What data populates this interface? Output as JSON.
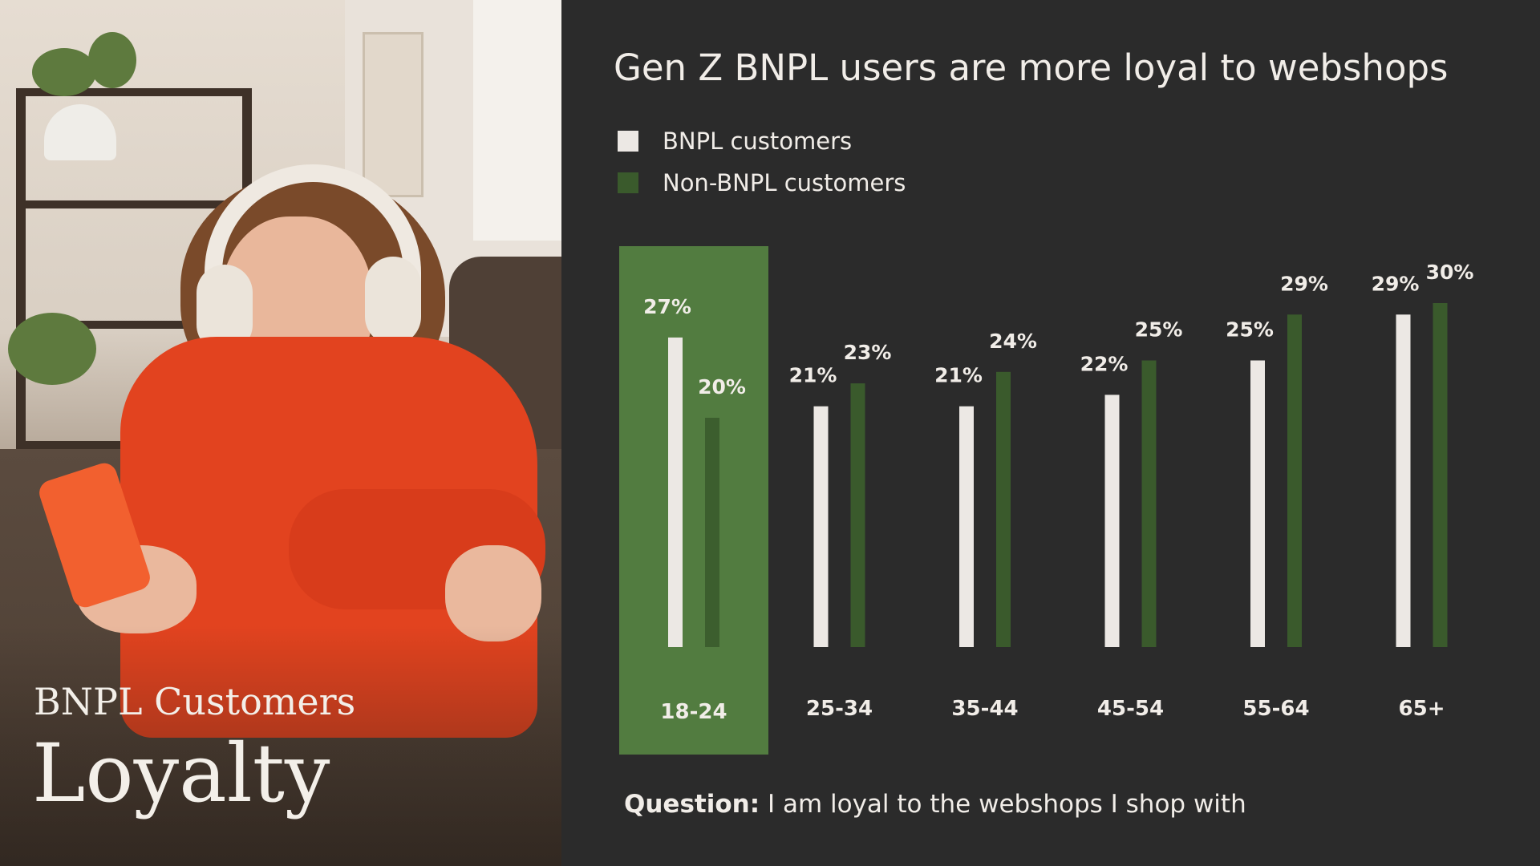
{
  "panel": {
    "subtitle": "BNPL Customers",
    "title": "Loyalty"
  },
  "colors": {
    "background": "#2b2b2b",
    "bnpl": "#ece8e4",
    "non_bnpl": "#3a5a2c",
    "highlight": "#527c40",
    "text": "#f1ede8"
  },
  "chart_data": {
    "type": "bar",
    "title": "Gen Z BNPL users are more loyal to webshops",
    "categories": [
      "18-24",
      "25-34",
      "35-44",
      "45-54",
      "55-64",
      "65+"
    ],
    "series": [
      {
        "name": "BNPL customers",
        "values": [
          27,
          21,
          21,
          22,
          25,
          29
        ],
        "labels": [
          "27%",
          "21%",
          "21%",
          "22%",
          "25%",
          "29%"
        ]
      },
      {
        "name": "Non-BNPL customers",
        "values": [
          20,
          23,
          24,
          25,
          29,
          30
        ],
        "labels": [
          "20%",
          "23%",
          "24%",
          "25%",
          "29%",
          "30%"
        ]
      }
    ],
    "highlight_category": "18-24",
    "legend_position": "top-left",
    "grid": false,
    "xlabel": "",
    "ylabel": ""
  },
  "footnote": {
    "prefix": "Question:",
    "text": " I am loyal to the webshops I shop with"
  }
}
